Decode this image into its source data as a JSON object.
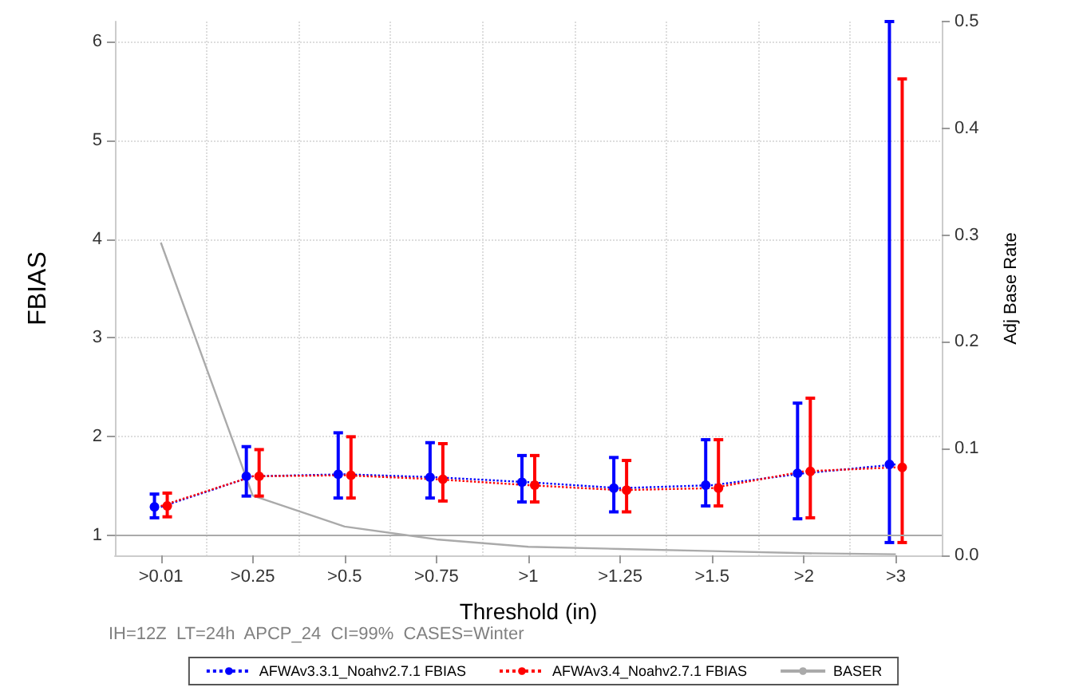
{
  "chart_data": {
    "type": "line",
    "xlabel": "Threshold (in)",
    "ylabel": "FBIAS",
    "y2label": "Adj Base Rate",
    "categories": [
      ">0.01",
      ">0.25",
      ">0.5",
      ">0.75",
      ">1",
      ">1.25",
      ">1.5",
      ">2",
      ">3"
    ],
    "series": [
      {
        "name": "AFWAv3.3.1_Noahv2.7.1 FBIAS",
        "color": "#0000ff",
        "marker": "circle",
        "line_style": "dotted",
        "values": [
          1.29,
          1.6,
          1.62,
          1.59,
          1.54,
          1.48,
          1.51,
          1.63,
          1.72
        ],
        "errors": [
          [
            1.18,
            1.42
          ],
          [
            1.4,
            1.9
          ],
          [
            1.38,
            2.04
          ],
          [
            1.38,
            1.94
          ],
          [
            1.34,
            1.81
          ],
          [
            1.24,
            1.79
          ],
          [
            1.3,
            1.97
          ],
          [
            1.17,
            2.34
          ],
          [
            0.93,
            6.2
          ]
        ]
      },
      {
        "name": "AFWAv3.4_Noahv2.7.1 FBIAS",
        "color": "#ff0000",
        "marker": "circle",
        "line_style": "dotted",
        "values": [
          1.3,
          1.6,
          1.61,
          1.57,
          1.51,
          1.46,
          1.48,
          1.65,
          1.69
        ],
        "errors": [
          [
            1.19,
            1.43
          ],
          [
            1.4,
            1.87
          ],
          [
            1.38,
            2.0
          ],
          [
            1.35,
            1.93
          ],
          [
            1.34,
            1.81
          ],
          [
            1.24,
            1.76
          ],
          [
            1.3,
            1.97
          ],
          [
            1.18,
            2.39
          ],
          [
            0.93,
            5.62
          ]
        ]
      },
      {
        "name": "BASER",
        "color": "#aaaaaa",
        "axis": "y2",
        "marker": "none",
        "line_style": "solid",
        "values": [
          0.293,
          0.056,
          0.027,
          0.015,
          0.008,
          0.006,
          0.004,
          0.002,
          0.001
        ]
      }
    ],
    "ylim": [
      0.8,
      6.2
    ],
    "yticks": [
      1,
      2,
      3,
      4,
      5,
      6
    ],
    "y2lim": [
      0,
      0.5
    ],
    "y2ticks": [
      {
        "value": 0,
        "label": "0.0"
      },
      0.1,
      0.2,
      0.3,
      0.4,
      0.5
    ],
    "ref_lines": [
      {
        "axis": "y",
        "value": 1,
        "color": "#aaaaaa"
      }
    ],
    "grid": true,
    "legend": "bottom",
    "annotations": [
      "IH=12Z  LT=24h  APCP_24  CI=99%  CASES=Winter"
    ]
  }
}
